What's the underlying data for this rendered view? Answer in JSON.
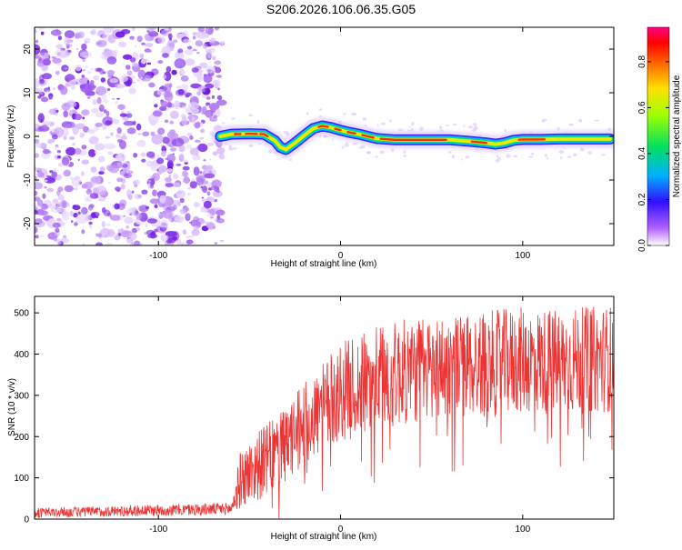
{
  "title": "S206.2026.106.06.35.G05",
  "chart_data": [
    {
      "type": "heatmap",
      "xlabel": "Height of straight line (km)",
      "ylabel": "Frequency (Hz)",
      "xlim": [
        -168,
        150
      ],
      "ylim": [
        -25,
        25
      ],
      "x_ticks": [
        -100,
        0,
        100
      ],
      "y_ticks": [
        -20,
        -10,
        0,
        10,
        20
      ],
      "noise_region_x": [
        -168,
        -65
      ],
      "ridge": {
        "x": [
          -66,
          -60,
          -50,
          -42,
          -36,
          -33,
          -30,
          -25,
          -20,
          -15,
          -10,
          -5,
          0,
          5,
          10,
          20,
          30,
          40,
          60,
          70,
          80,
          85,
          90,
          95,
          100,
          110,
          120,
          130,
          140,
          148
        ],
        "y": [
          0,
          0.5,
          0.6,
          0.5,
          -1.0,
          -2.5,
          -3.0,
          -1.5,
          0.2,
          1.8,
          2.4,
          2.0,
          1.4,
          0.9,
          0.5,
          -0.5,
          -0.8,
          -0.8,
          -0.8,
          -1.1,
          -1.5,
          -1.8,
          -1.5,
          -0.9,
          -0.7,
          -0.7,
          -0.6,
          -0.6,
          -0.6,
          -0.6
        ]
      },
      "colorbar": {
        "label": "Normalized spectral amplitude",
        "range": [
          0.0,
          0.95
        ],
        "ticks": [
          "0.0",
          "0.2",
          "0.4",
          "0.6",
          "0.8"
        ]
      }
    },
    {
      "type": "line",
      "xlabel": "Height of straight line (km)",
      "ylabel": "SNR (10 * v/v)",
      "xlim": [
        -168,
        150
      ],
      "ylim": [
        0,
        540
      ],
      "x_ticks": [
        -100,
        0,
        100
      ],
      "y_ticks": [
        0,
        100,
        200,
        300,
        400,
        500
      ],
      "series": [
        {
          "name": "SNR",
          "color": "#ee3333",
          "x": [
            -168,
            -60,
            -55,
            -45,
            -30,
            -20,
            -10,
            0,
            10,
            20,
            40,
            60,
            80,
            100,
            120,
            150
          ],
          "mean": [
            15,
            25,
            95,
            130,
            175,
            230,
            265,
            310,
            320,
            340,
            360,
            370,
            375,
            385,
            380,
            390
          ],
          "spread": [
            12,
            15,
            70,
            85,
            95,
            100,
            110,
            120,
            125,
            130,
            130,
            130,
            130,
            130,
            130,
            130
          ]
        }
      ]
    }
  ]
}
